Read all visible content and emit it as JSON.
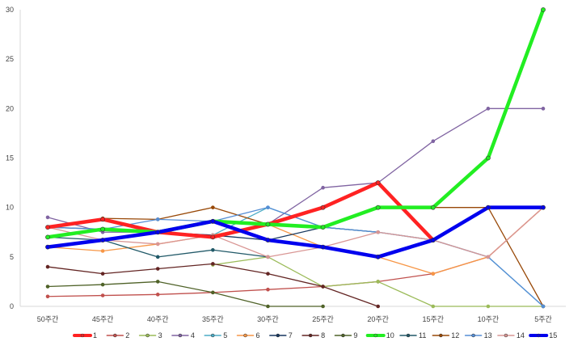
{
  "chart_data": {
    "type": "line",
    "title": "",
    "xlabel": "",
    "ylabel": "",
    "ylim": [
      0,
      30
    ],
    "yticks": [
      0,
      5,
      10,
      15,
      20,
      25,
      30
    ],
    "grid": false,
    "legend_position": "bottom",
    "categories": [
      "50주간",
      "45주간",
      "40주간",
      "35주간",
      "30주간",
      "25주간",
      "20주간",
      "15주간",
      "10주간",
      "5주간"
    ],
    "series": [
      {
        "name": "1",
        "color": "#ff2222",
        "bold": true,
        "values": [
          8,
          8.8,
          7.5,
          7,
          8.3,
          10,
          12.5,
          6.7,
          null,
          null
        ]
      },
      {
        "name": "2",
        "color": "#c0504d",
        "bold": false,
        "values": [
          1,
          1.1,
          1.2,
          1.4,
          1.7,
          2,
          2.5,
          3.3,
          5,
          10
        ]
      },
      {
        "name": "3",
        "color": "#9bbb59",
        "bold": false,
        "values": [
          null,
          null,
          null,
          4.2,
          5,
          2,
          2.5,
          0,
          0,
          0
        ]
      },
      {
        "name": "4",
        "color": "#8064a2",
        "bold": false,
        "values": [
          9,
          7.5,
          7.5,
          7.2,
          8.3,
          12,
          12.5,
          16.7,
          20,
          20
        ]
      },
      {
        "name": "5",
        "color": "#4bacc6",
        "bold": false,
        "values": [
          null,
          null,
          null,
          7.2,
          10,
          8,
          7.5,
          6.7,
          5,
          0
        ]
      },
      {
        "name": "6",
        "color": "#f79646",
        "bold": false,
        "values": [
          6,
          5.6,
          6.3,
          7.2,
          8.3,
          6,
          5,
          3.3,
          5,
          10
        ]
      },
      {
        "name": "7",
        "color": "#17375e",
        "bold": false,
        "values": [
          8,
          7.8,
          7.5,
          7.2,
          6.7,
          8,
          7.5,
          null,
          null,
          null
        ]
      },
      {
        "name": "8",
        "color": "#632523",
        "bold": false,
        "values": [
          4,
          3.3,
          3.8,
          4.3,
          3.3,
          2,
          0,
          null,
          null,
          null
        ]
      },
      {
        "name": "9",
        "color": "#4f6228",
        "bold": false,
        "values": [
          2,
          2.2,
          2.5,
          1.4,
          0,
          0,
          null,
          null,
          null,
          null
        ]
      },
      {
        "name": "10",
        "color": "#22ee22",
        "bold": true,
        "values": [
          7,
          7.8,
          7.5,
          8.6,
          8.3,
          8,
          10,
          10,
          15,
          30
        ]
      },
      {
        "name": "11",
        "color": "#215968",
        "bold": false,
        "values": [
          7,
          6.7,
          5,
          5.7,
          5,
          null,
          null,
          null,
          null,
          null
        ]
      },
      {
        "name": "12",
        "color": "#984807",
        "bold": false,
        "values": [
          8,
          8.9,
          8.8,
          10,
          8.3,
          8,
          10,
          10,
          10,
          0
        ]
      },
      {
        "name": "13",
        "color": "#558ed5",
        "bold": false,
        "values": [
          8,
          7.8,
          8.8,
          8.6,
          10,
          8,
          7.5,
          6.7,
          5,
          0
        ]
      },
      {
        "name": "14",
        "color": "#d99694",
        "bold": false,
        "values": [
          8,
          6.7,
          6.3,
          7.2,
          5,
          6,
          7.5,
          6.7,
          5,
          10
        ]
      },
      {
        "name": "15",
        "color": "#0000ee",
        "bold": true,
        "values": [
          6,
          6.7,
          7.5,
          8.6,
          6.7,
          6,
          5,
          6.7,
          10,
          10
        ]
      }
    ]
  }
}
